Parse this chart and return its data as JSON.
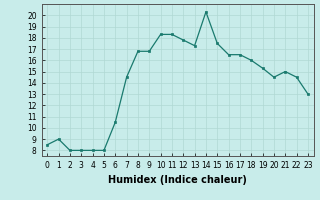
{
  "x": [
    0,
    1,
    2,
    3,
    4,
    5,
    6,
    7,
    8,
    9,
    10,
    11,
    12,
    13,
    14,
    15,
    16,
    17,
    18,
    19,
    20,
    21,
    22,
    23
  ],
  "y": [
    8.5,
    9.0,
    8.0,
    8.0,
    8.0,
    8.0,
    10.5,
    14.5,
    16.8,
    16.8,
    18.3,
    18.3,
    17.8,
    17.3,
    20.3,
    17.5,
    16.5,
    16.5,
    16.0,
    15.3,
    14.5,
    15.0,
    14.5,
    13.0
  ],
  "title": "",
  "xlabel": "Humidex (Indice chaleur)",
  "ylabel": "",
  "xlim": [
    -0.5,
    23.5
  ],
  "ylim": [
    7.5,
    21.0
  ],
  "yticks": [
    8,
    9,
    10,
    11,
    12,
    13,
    14,
    15,
    16,
    17,
    18,
    19,
    20
  ],
  "xticks": [
    0,
    1,
    2,
    3,
    4,
    5,
    6,
    7,
    8,
    9,
    10,
    11,
    12,
    13,
    14,
    15,
    16,
    17,
    18,
    19,
    20,
    21,
    22,
    23
  ],
  "line_color": "#1a7a6e",
  "marker_color": "#1a7a6e",
  "bg_color": "#c8ecea",
  "grid_color": "#b0d8d4",
  "text_color": "#000000",
  "tick_fontsize": 5.5,
  "xlabel_fontsize": 7
}
